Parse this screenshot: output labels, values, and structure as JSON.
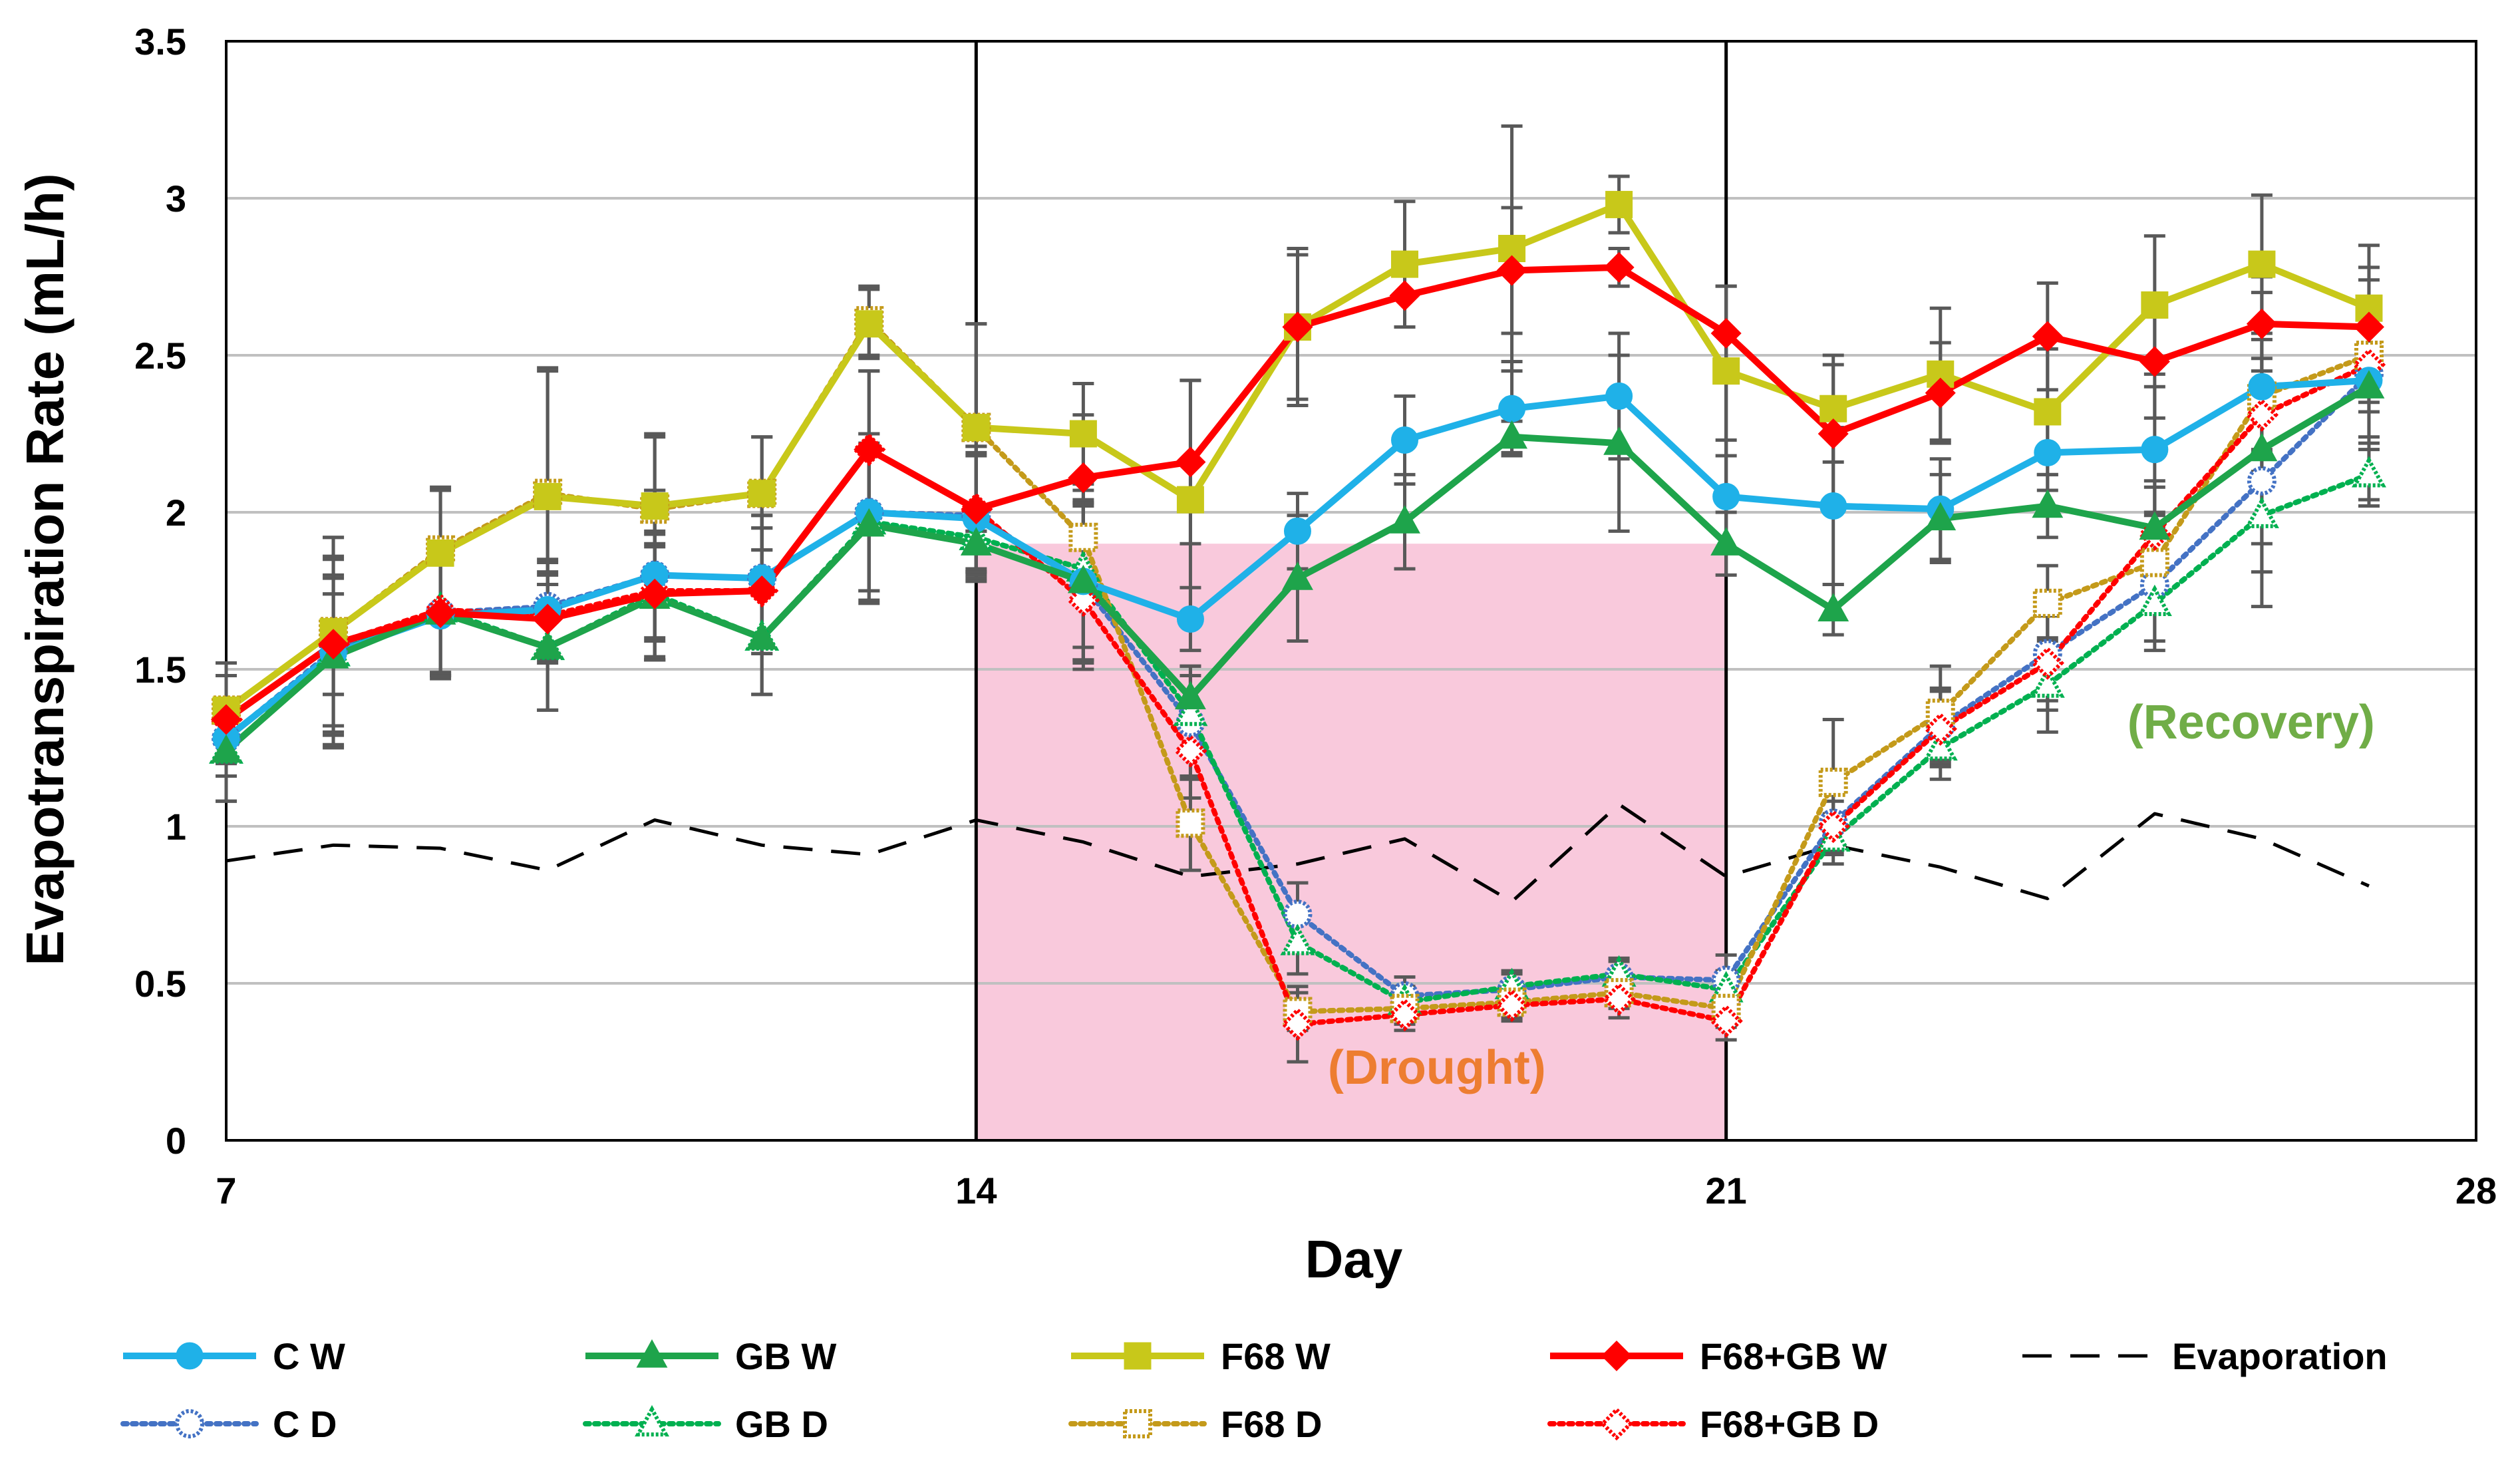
{
  "chart_data": {
    "type": "line",
    "title": "",
    "xlabel": "Day",
    "ylabel": "Evapotranspiration Rate (mL/h)",
    "xlim": [
      7,
      28
    ],
    "ylim": [
      0,
      3.5
    ],
    "xticks": [
      7,
      14,
      21,
      28
    ],
    "yticks": [
      "0",
      "0.5",
      "1",
      "1.5",
      "2",
      "2.5",
      "3",
      "3.5"
    ],
    "grid": true,
    "phase_lines": [
      14,
      21
    ],
    "shaded_region": {
      "x": [
        14,
        21
      ],
      "y": [
        0,
        1.9
      ],
      "color": "#f9c9dc"
    },
    "annotations": [
      {
        "text": "(Drought)",
        "x": 18.3,
        "y": 0.18,
        "color": "#ed7d31"
      },
      {
        "text": "(Recovery)",
        "x": 25.9,
        "y": 1.28,
        "color": "#70ad47"
      }
    ],
    "x": [
      7,
      8,
      9,
      10,
      11,
      12,
      13,
      14,
      15,
      16,
      17,
      18,
      19,
      20,
      21,
      22,
      23,
      24,
      25,
      26,
      27
    ],
    "series": [
      {
        "name": "C W",
        "color": "#1fb1e8",
        "style": "solid",
        "marker": "circle",
        "filled": true,
        "values": [
          1.28,
          1.55,
          1.67,
          1.69,
          1.8,
          1.79,
          2.0,
          1.98,
          1.78,
          1.66,
          1.94,
          2.23,
          2.33,
          2.37,
          2.05,
          2.02,
          2.01,
          2.19,
          2.2,
          2.4,
          2.42
        ],
        "errors": [
          0.12,
          0.3,
          0.2,
          0.15,
          0.27,
          0.2,
          0.25,
          0.2,
          0.25,
          0.1,
          0.12,
          0.14,
          0.15,
          0.2,
          0.18,
          0.25,
          0.16,
          0.12,
          0.2,
          0.2,
          0.2
        ]
      },
      {
        "name": "GB W",
        "color": "#1ea44b",
        "style": "solid",
        "marker": "triangle",
        "filled": true,
        "values": [
          1.24,
          1.54,
          1.68,
          1.57,
          1.73,
          1.6,
          1.96,
          1.9,
          1.78,
          1.41,
          1.79,
          1.97,
          2.24,
          2.22,
          1.9,
          1.69,
          1.98,
          2.02,
          1.95,
          2.2,
          2.4
        ],
        "errors": [
          0.16,
          0.25,
          0.2,
          0.2,
          0.2,
          0.18,
          0.25,
          0.1,
          0.25,
          0.1,
          0.2,
          0.15,
          0.05,
          0.28,
          0.1,
          0.08,
          0.14,
          0.1,
          0.15,
          0.5,
          0.38
        ]
      },
      {
        "name": "F68 W",
        "color": "#c8c81a",
        "style": "solid",
        "marker": "square",
        "filled": true,
        "values": [
          1.37,
          1.62,
          1.87,
          2.05,
          2.02,
          2.06,
          2.6,
          2.27,
          2.25,
          2.04,
          2.59,
          2.79,
          2.84,
          2.98,
          2.45,
          2.33,
          2.44,
          2.32,
          2.66,
          2.79,
          2.65
        ],
        "errors": [
          0.15,
          0.3,
          0.2,
          0.4,
          0.23,
          0.18,
          0.11,
          0.33,
          0.16,
          0.38,
          0.23,
          0.2,
          0.39,
          0.09,
          0.27,
          0.17,
          0.21,
          0.2,
          0.22,
          0.22,
          0.2
        ]
      },
      {
        "name": "F68+GB W",
        "color": "#ff0000",
        "style": "solid",
        "marker": "diamond",
        "filled": true,
        "values": [
          1.34,
          1.58,
          1.68,
          1.66,
          1.74,
          1.75,
          2.2,
          2.01,
          2.11,
          2.16,
          2.59,
          2.69,
          2.77,
          2.78,
          2.57,
          2.25,
          2.38,
          2.56,
          2.48,
          2.6,
          2.59
        ],
        "errors": [
          0.14,
          0.16,
          0.2,
          0.14,
          0.15,
          0.2,
          0.25,
          0.2,
          0.2,
          0.26,
          0.25,
          0.1,
          0.2,
          0.06,
          0.15,
          0.22,
          0.16,
          0.17,
          0.18,
          0.15,
          0.15
        ]
      },
      {
        "name": "C D",
        "color": "#4472c4",
        "style": "dotted",
        "marker": "circle",
        "filled": false,
        "values": [
          1.28,
          1.56,
          1.68,
          1.7,
          1.8,
          1.79,
          2.0,
          1.99,
          1.77,
          1.33,
          0.72,
          0.46,
          0.48,
          0.52,
          0.51,
          1.01,
          1.32,
          1.55,
          1.77,
          2.1,
          2.44
        ],
        "errors": [
          0.12,
          0.3,
          0.2,
          0.15,
          0.27,
          0.2,
          0.25,
          0.2,
          0.25,
          0.18,
          0.1,
          0.06,
          0.05,
          0.05,
          0.08,
          0.1,
          0.12,
          0.15,
          0.18,
          0.2,
          0.2
        ]
      },
      {
        "name": "GB D",
        "color": "#00b050",
        "style": "dotted",
        "marker": "triangle",
        "filled": false,
        "values": [
          1.24,
          1.55,
          1.69,
          1.57,
          1.74,
          1.6,
          1.97,
          1.92,
          1.82,
          1.36,
          0.63,
          0.44,
          0.49,
          0.53,
          0.48,
          0.96,
          1.25,
          1.45,
          1.71,
          1.99,
          2.12
        ],
        "errors": [
          0.16,
          0.25,
          0.2,
          0.2,
          0.2,
          0.18,
          0.25,
          0.1,
          0.25,
          0.12,
          0.1,
          0.05,
          0.05,
          0.05,
          0.06,
          0.08,
          0.1,
          0.15,
          0.15,
          0.18,
          0.08
        ]
      },
      {
        "name": "F68 D",
        "color": "#c49a1a",
        "style": "dotted",
        "marker": "square",
        "filled": false,
        "values": [
          1.37,
          1.62,
          1.88,
          2.06,
          2.01,
          2.06,
          2.61,
          2.27,
          1.92,
          1.01,
          0.41,
          0.42,
          0.44,
          0.47,
          0.42,
          1.14,
          1.36,
          1.71,
          1.84,
          2.37,
          2.5
        ],
        "errors": [
          0.15,
          0.3,
          0.2,
          0.4,
          0.23,
          0.18,
          0.11,
          0.33,
          0.12,
          0.15,
          0.06,
          0.05,
          0.05,
          0.05,
          0.06,
          0.2,
          0.15,
          0.12,
          0.15,
          0.18,
          0.15
        ]
      },
      {
        "name": "F68+GB D",
        "color": "#ff0000",
        "style": "dotted",
        "marker": "diamond",
        "filled": false,
        "values": [
          1.34,
          1.58,
          1.69,
          1.67,
          1.75,
          1.75,
          2.2,
          2.01,
          1.72,
          1.24,
          0.37,
          0.4,
          0.43,
          0.45,
          0.38,
          1.0,
          1.31,
          1.52,
          1.93,
          2.31,
          2.47
        ],
        "errors": [
          0.14,
          0.16,
          0.2,
          0.14,
          0.15,
          0.2,
          0.25,
          0.2,
          0.22,
          0.15,
          0.12,
          0.05,
          0.05,
          0.06,
          0.06,
          0.08,
          0.12,
          0.15,
          0.15,
          0.18,
          0.15
        ]
      },
      {
        "name": "Evaporation",
        "color": "#000000",
        "style": "dashed",
        "marker": "none",
        "filled": false,
        "values": [
          0.89,
          0.94,
          0.93,
          0.86,
          1.02,
          0.94,
          0.91,
          1.02,
          0.95,
          0.84,
          0.88,
          0.96,
          0.76,
          1.07,
          0.84,
          0.94,
          0.87,
          0.77,
          1.04,
          0.96,
          0.81
        ],
        "errors": null
      }
    ]
  }
}
